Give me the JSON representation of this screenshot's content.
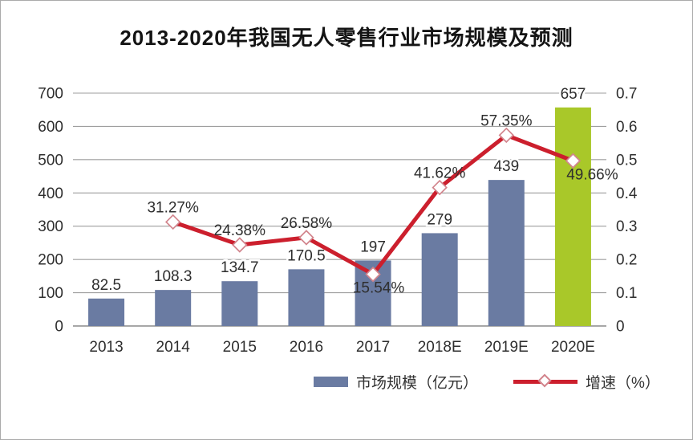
{
  "page": {
    "title": "2013-2020年我国无人零售行业市场规模及预测"
  },
  "chart_data": {
    "type": "bar+line",
    "title": "2013-2020年我国无人零售行业市场规模及预测",
    "categories": [
      "2013",
      "2014",
      "2015",
      "2016",
      "2017",
      "2018E",
      "2019E",
      "2020E"
    ],
    "series": [
      {
        "name": "市场规模（亿元）",
        "type": "bar",
        "values": [
          82.5,
          108.3,
          134.7,
          170.5,
          197,
          279,
          439,
          657
        ],
        "labels": [
          "82.5",
          "108.3",
          "134.7",
          "170.5",
          "197",
          "279",
          "439",
          "657"
        ],
        "bar_colors": [
          "#6a7ba2",
          "#6a7ba2",
          "#6a7ba2",
          "#6a7ba2",
          "#6a7ba2",
          "#6a7ba2",
          "#6a7ba2",
          "#a9c829"
        ]
      },
      {
        "name": "增速（%）",
        "type": "line",
        "values_percent": [
          null,
          31.27,
          24.38,
          26.58,
          15.54,
          41.62,
          57.35,
          49.66
        ],
        "labels": [
          null,
          "31.27%",
          "24.38%",
          "26.58%",
          "15.54%",
          "41.62%",
          "57.35%",
          "49.66%"
        ],
        "label_side": [
          "",
          "above",
          "above",
          "above",
          "below",
          "above",
          "above",
          "below"
        ]
      }
    ],
    "axes": {
      "left": {
        "min": 0,
        "max": 700,
        "ticks": [
          "0",
          "100",
          "200",
          "300",
          "400",
          "500",
          "600",
          "700"
        ]
      },
      "right": {
        "min": 0,
        "max": 0.7,
        "ticks": [
          "0",
          "0.1",
          "0.2",
          "0.3",
          "0.4",
          "0.5",
          "0.6",
          "0.7"
        ]
      }
    },
    "grid": true,
    "legend_position": "bottom"
  },
  "legend": {
    "bar_label": "市场规模（亿元）",
    "line_label": "增速（%）"
  },
  "colors": {
    "bar": "#6a7ba2",
    "bar_forecast": "#a9c829",
    "line": "#cc1f2d",
    "marker_fill": "#ffffff",
    "marker_stroke": "#d2848c",
    "grid": "#9e9e9e",
    "axis": "#8a8a8a",
    "text": "#2e2e2e"
  }
}
